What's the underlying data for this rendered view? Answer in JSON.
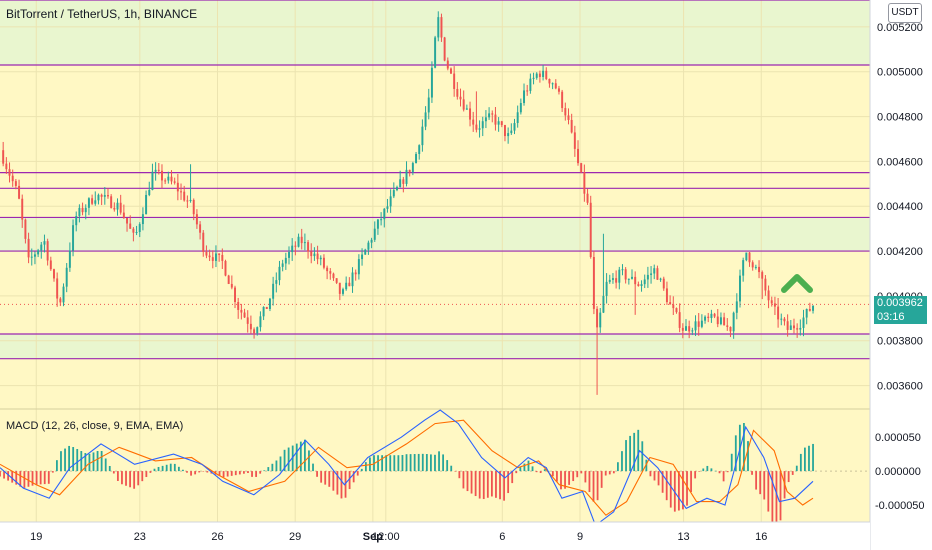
{
  "header": {
    "title": "BitTorrent / TetherUS, 1h, BINANCE",
    "currency": "USDT"
  },
  "indicator": {
    "label": "MACD (12, 26, close, 9, EMA, EMA)"
  },
  "last_price": {
    "value": "0.003962",
    "countdown": "03:16",
    "color": "#26a69a"
  },
  "colors": {
    "background": "#fff8c4",
    "zone_fill": "#e9f6cf",
    "level_line": "#9c27b0",
    "up": "#26a69a",
    "down": "#ef5350",
    "macd_line": "#2962ff",
    "signal_line": "#ff6d00",
    "arrow": "#4caf50"
  },
  "annotations": {
    "arrow_icon": "chevron-up-icon"
  },
  "chart_data": {
    "type": "candlestick",
    "title": "BitTorrent / TetherUS, 1h, BINANCE",
    "ylim": [
      0.0035,
      0.00532
    ],
    "y_ticks": [
      "0.005200",
      "0.005000",
      "0.004800",
      "0.004600",
      "0.004400",
      "0.004200",
      "0.004000",
      "0.003800",
      "0.003600"
    ],
    "y_tick_values": [
      0.0052,
      0.005,
      0.0048,
      0.0046,
      0.0044,
      0.0042,
      0.004,
      0.0038,
      0.0036
    ],
    "x_ticks": [
      "19",
      "23",
      "26",
      "29",
      "Sep",
      "12:00",
      "6",
      "9",
      "13",
      "16"
    ],
    "x_tick_days": [
      1,
      5,
      8,
      11,
      14,
      14.5,
      19,
      22,
      26,
      29
    ],
    "x_range_days": [
      -0.4,
      33.2
    ],
    "horizontal_levels": [
      0.00532,
      0.00503,
      0.00455,
      0.00448,
      0.00435,
      0.0042,
      0.00383,
      0.00372
    ],
    "zones": [
      [
        0.00503,
        0.00532
      ],
      [
        0.0042,
        0.00435
      ],
      [
        0.00372,
        0.00383
      ]
    ],
    "price_path": [
      [
        -0.4,
        0.00465
      ],
      [
        0.3,
        0.00445
      ],
      [
        0.7,
        0.00415
      ],
      [
        1.3,
        0.00425
      ],
      [
        1.9,
        0.00395
      ],
      [
        2.5,
        0.00435
      ],
      [
        3.3,
        0.00445
      ],
      [
        4.2,
        0.0044
      ],
      [
        4.8,
        0.00425
      ],
      [
        5.5,
        0.00455
      ],
      [
        6.3,
        0.0045
      ],
      [
        7.0,
        0.0044
      ],
      [
        7.5,
        0.0042
      ],
      [
        8.2,
        0.00415
      ],
      [
        8.8,
        0.00395
      ],
      [
        9.4,
        0.00385
      ],
      [
        9.9,
        0.00395
      ],
      [
        10.5,
        0.00415
      ],
      [
        11.2,
        0.00425
      ],
      [
        12.0,
        0.00415
      ],
      [
        12.8,
        0.004
      ],
      [
        13.5,
        0.00415
      ],
      [
        14.1,
        0.0043
      ],
      [
        14.8,
        0.00445
      ],
      [
        15.6,
        0.0046
      ],
      [
        16.2,
        0.0049
      ],
      [
        16.5,
        0.00525
      ],
      [
        16.8,
        0.00505
      ],
      [
        17.3,
        0.0049
      ],
      [
        18.0,
        0.00475
      ],
      [
        18.6,
        0.0048
      ],
      [
        19.3,
        0.0047
      ],
      [
        19.8,
        0.0049
      ],
      [
        20.4,
        0.005
      ],
      [
        21.0,
        0.00495
      ],
      [
        21.5,
        0.0048
      ],
      [
        21.9,
        0.0046
      ],
      [
        22.3,
        0.0044
      ],
      [
        22.6,
        0.0038
      ],
      [
        23.0,
        0.00405
      ],
      [
        23.6,
        0.0041
      ],
      [
        24.3,
        0.00405
      ],
      [
        24.9,
        0.00412
      ],
      [
        25.5,
        0.00395
      ],
      [
        26.0,
        0.00385
      ],
      [
        26.6,
        0.00388
      ],
      [
        27.2,
        0.0039
      ],
      [
        27.8,
        0.00385
      ],
      [
        28.4,
        0.0042
      ],
      [
        28.9,
        0.0041
      ],
      [
        29.4,
        0.00395
      ],
      [
        30.0,
        0.00385
      ],
      [
        30.5,
        0.00388
      ],
      [
        31.0,
        0.00396
      ]
    ],
    "macd": {
      "ylim": [
        -7.5e-05,
        9e-05
      ],
      "y_ticks": [
        "0.000050",
        "0.000000",
        "-0.000050"
      ],
      "y_tick_values": [
        5e-05,
        0.0,
        -5e-05
      ],
      "macd_path": [
        [
          -0.4,
          5e-06
        ],
        [
          0.5,
          -2.5e-05
        ],
        [
          1.5,
          -4e-05
        ],
        [
          2.3,
          5e-06
        ],
        [
          3.5,
          4e-05
        ],
        [
          4.8,
          1e-05
        ],
        [
          6.3,
          2.5e-05
        ],
        [
          7.4,
          1e-05
        ],
        [
          8.2,
          -1.5e-05
        ],
        [
          9.4,
          -3.5e-05
        ],
        [
          10.4,
          -5e-06
        ],
        [
          11.4,
          4.5e-05
        ],
        [
          12.3,
          1e-05
        ],
        [
          12.9,
          -2e-05
        ],
        [
          13.8,
          2e-05
        ],
        [
          15.1,
          5e-05
        ],
        [
          16.0,
          7.5e-05
        ],
        [
          16.6,
          9e-05
        ],
        [
          17.3,
          7e-05
        ],
        [
          18.2,
          2e-05
        ],
        [
          19.1,
          -1e-05
        ],
        [
          20.0,
          2e-05
        ],
        [
          20.7,
          5e-06
        ],
        [
          21.3,
          -4e-05
        ],
        [
          22.1,
          -3e-05
        ],
        [
          22.6,
          -8e-05
        ],
        [
          23.3,
          -6e-05
        ],
        [
          24.3,
          3e-05
        ],
        [
          25.0,
          5e-06
        ],
        [
          26.1,
          -5.5e-05
        ],
        [
          26.9,
          -4e-05
        ],
        [
          27.6,
          -5e-05
        ],
        [
          28.4,
          6.5e-05
        ],
        [
          29.1,
          2e-05
        ],
        [
          29.7,
          -4.5e-05
        ],
        [
          30.3,
          -4e-05
        ],
        [
          31.0,
          -1.5e-05
        ]
      ],
      "signal_path": [
        [
          -0.4,
          1e-05
        ],
        [
          1.0,
          -2e-05
        ],
        [
          1.9,
          -3.5e-05
        ],
        [
          3.0,
          1e-05
        ],
        [
          4.2,
          3.5e-05
        ],
        [
          5.6,
          1.5e-05
        ],
        [
          7.0,
          2e-05
        ],
        [
          8.0,
          -5e-06
        ],
        [
          9.2,
          -3e-05
        ],
        [
          10.6,
          -1.5e-05
        ],
        [
          11.9,
          3.5e-05
        ],
        [
          13.0,
          5e-06
        ],
        [
          14.0,
          1e-05
        ],
        [
          15.3,
          4e-05
        ],
        [
          16.4,
          7e-05
        ],
        [
          17.5,
          7.5e-05
        ],
        [
          18.6,
          3e-05
        ],
        [
          19.6,
          5e-06
        ],
        [
          20.4,
          1.5e-05
        ],
        [
          21.2,
          -2e-05
        ],
        [
          22.2,
          -3e-05
        ],
        [
          23.0,
          -6.5e-05
        ],
        [
          23.8,
          -4.5e-05
        ],
        [
          24.7,
          2e-05
        ],
        [
          25.6,
          1e-05
        ],
        [
          26.5,
          -4.5e-05
        ],
        [
          27.4,
          -4.5e-05
        ],
        [
          28.1,
          -2e-05
        ],
        [
          28.7,
          6e-05
        ],
        [
          29.5,
          3e-05
        ],
        [
          30.0,
          -3e-05
        ],
        [
          30.6,
          -5e-05
        ],
        [
          31.0,
          -4e-05
        ]
      ]
    }
  }
}
